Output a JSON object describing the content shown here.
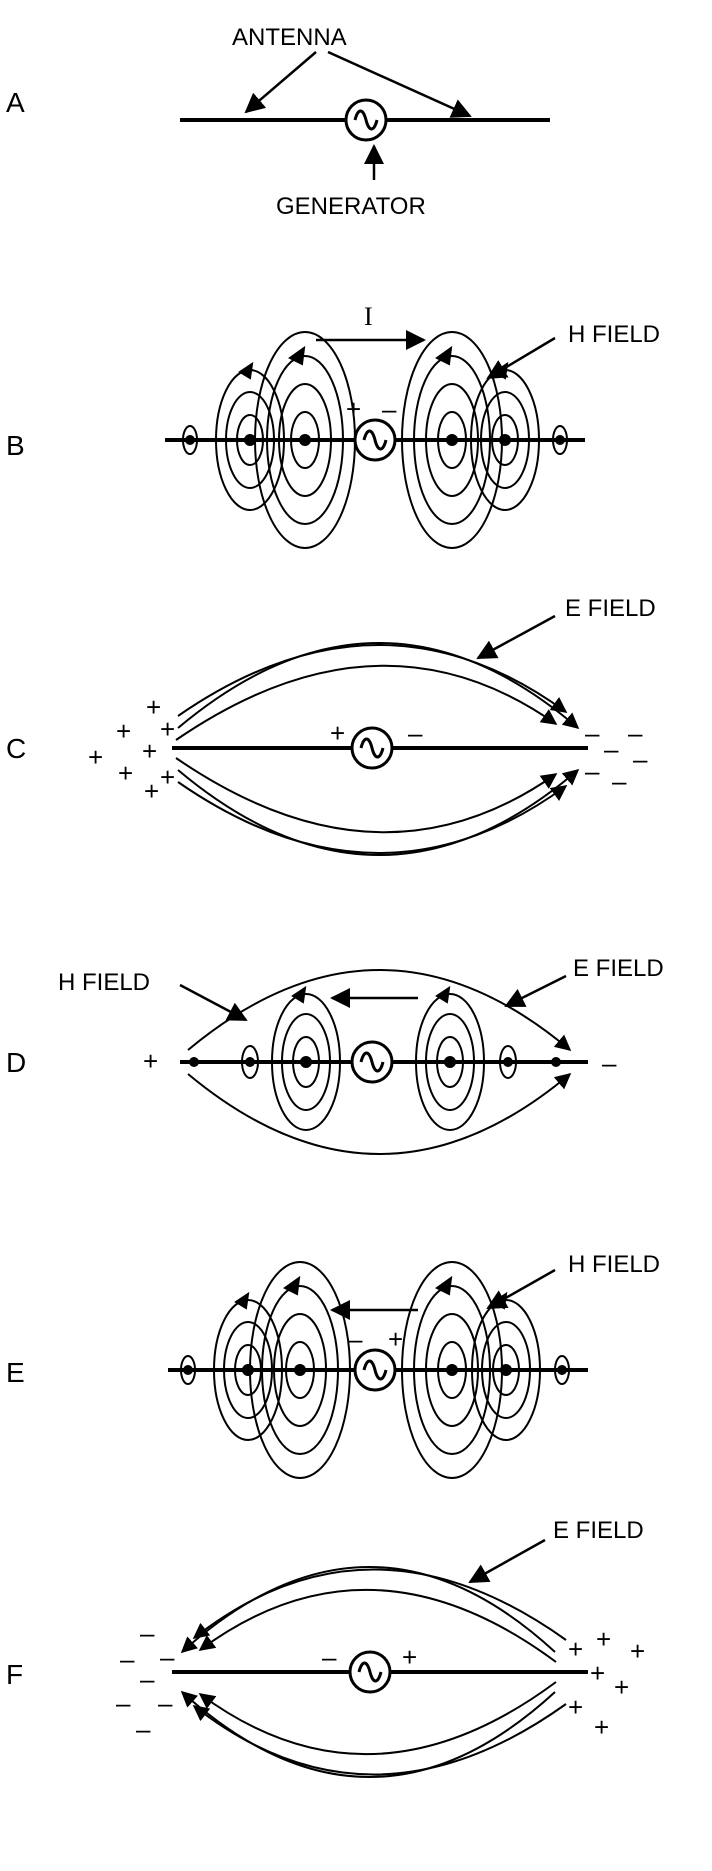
{
  "colors": {
    "ink": "#000000",
    "background": "#ffffff"
  },
  "panels": {
    "A": {
      "label": "A",
      "antenna_label": "ANTENNA",
      "generator_label": "GENERATOR"
    },
    "B": {
      "label": "B",
      "current_label": "I",
      "field_label": "H FIELD",
      "plus": "+",
      "minus": "–"
    },
    "C": {
      "label": "C",
      "field_label": "E FIELD",
      "plus": "+",
      "minus": "–"
    },
    "D": {
      "label": "D",
      "h_field_label": "H FIELD",
      "e_field_label": "E FIELD",
      "plus": "+",
      "minus": "–"
    },
    "E": {
      "label": "E",
      "field_label": "H FIELD",
      "plus": "+",
      "minus": "–"
    },
    "F": {
      "label": "F",
      "field_label": "E FIELD",
      "plus": "+",
      "minus": "–"
    }
  },
  "icons": {
    "generator": "generator-icon",
    "h_loop": "h-field-loop-icon",
    "e_line": "e-field-line-icon"
  }
}
